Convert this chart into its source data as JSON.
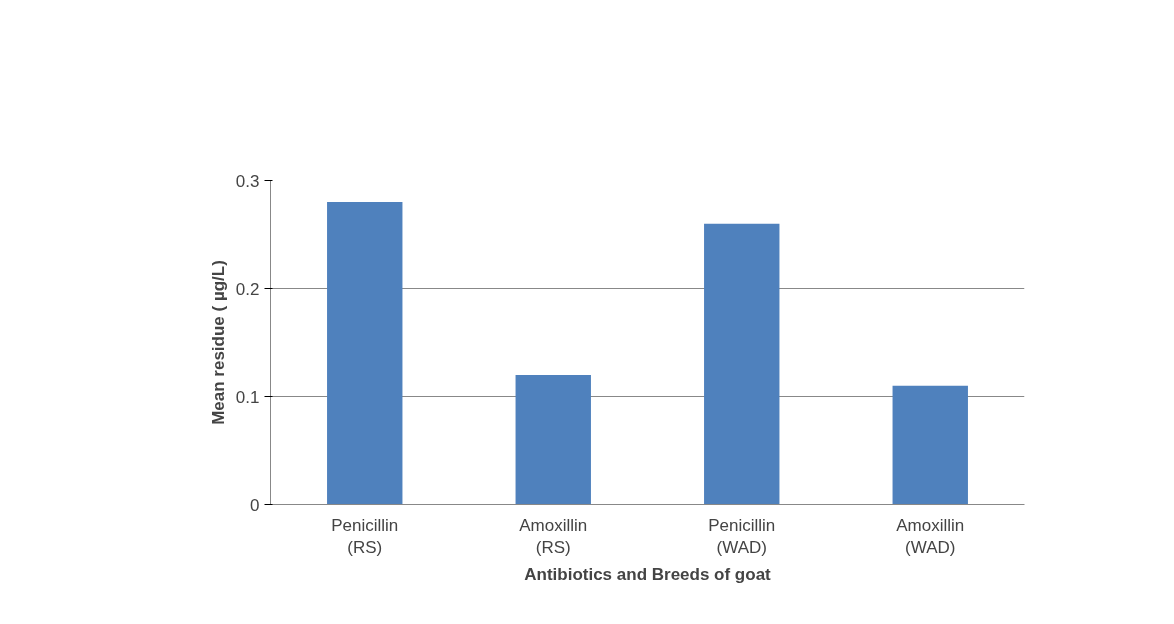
{
  "chart_data": {
    "type": "bar",
    "xlabel": "Antibiotics and Breeds of goat",
    "ylabel": "Mean residue ( µg/L)",
    "categories": [
      "Penicillin\n(RS)",
      "Amoxillin\n(RS)",
      "Penicillin\n(WAD)",
      "Amoxillin\n(WAD)"
    ],
    "values": [
      0.28,
      0.12,
      0.26,
      0.11
    ],
    "color": "#4f81bd",
    "ylim": [
      0,
      0.3
    ],
    "yticks": [
      0,
      0.1,
      0.2,
      0.3
    ],
    "grid": "y"
  }
}
